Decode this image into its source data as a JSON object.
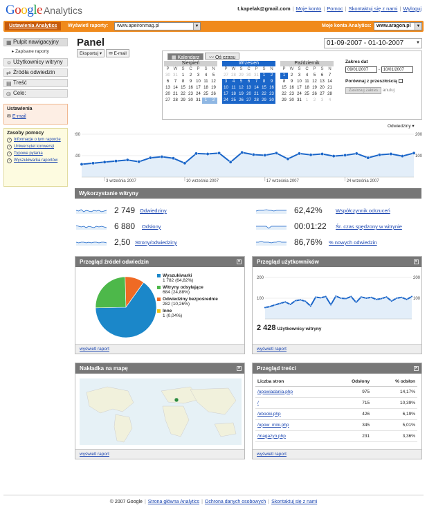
{
  "header": {
    "logo_google": "Google",
    "logo_analytics": "Analytics",
    "email": "t.kapelak@gmail.com",
    "links": [
      "Moje konto",
      "Pomoc",
      "Skontaktuj się z nami",
      "Wyloguj"
    ]
  },
  "toolbar": {
    "settings_tab": "Ustawienia Analytics",
    "view_reports_label": "Wyświetl raporty:",
    "view_reports_value": "www.apeironmag.pl",
    "accounts_label": "Moje konta Analytics:",
    "accounts_value": "www.aragon.pl"
  },
  "sidebar": {
    "items": [
      {
        "label": "Pulpit nawigacyjny",
        "icon": "dashboard-icon"
      },
      {
        "label": "Użytkownicy witryny",
        "icon": "user-icon"
      },
      {
        "label": "Źródła odwiedzin",
        "icon": "sources-icon"
      },
      {
        "label": "Treść",
        "icon": "content-icon"
      },
      {
        "label": "Cele:",
        "icon": "goal-icon"
      }
    ],
    "saved_reports": "Zapisane raporty",
    "settings_title": "Ustawienia",
    "settings_email": "E-mail",
    "help_title": "Zasoby pomocy",
    "help_items": [
      "Informacje o tym raporcie",
      "Uniwersytet konwersji",
      "Typowe pytania",
      "Wyszukiwarka raportów"
    ]
  },
  "main": {
    "title": "Panel",
    "export_label": "Eksportuj",
    "email_label": "E-mail",
    "date_range": "01-09-2007 - 01-10-2007"
  },
  "calendar": {
    "tab_calendar": "Kalendarz",
    "tab_timeline": "Oś czasu",
    "day_headers": [
      "P",
      "W",
      "Ś",
      "C",
      "P",
      "S",
      "N"
    ],
    "months": [
      {
        "name": "Sierpień",
        "days": [
          "30",
          "31",
          "1",
          "2",
          "3",
          "4",
          "5",
          "6",
          "7",
          "8",
          "9",
          "10",
          "11",
          "12",
          "13",
          "14",
          "15",
          "16",
          "17",
          "18",
          "19",
          "20",
          "21",
          "22",
          "23",
          "24",
          "25",
          "26",
          "27",
          "28",
          "29",
          "30",
          "31",
          "1",
          "2"
        ]
      },
      {
        "name": "Wrzesień",
        "days": [
          "27",
          "28",
          "29",
          "30",
          "31",
          "1",
          "2",
          "3",
          "4",
          "5",
          "6",
          "7",
          "8",
          "9",
          "10",
          "11",
          "12",
          "13",
          "14",
          "15",
          "16",
          "17",
          "18",
          "19",
          "20",
          "21",
          "22",
          "23",
          "24",
          "25",
          "26",
          "27",
          "28",
          "29",
          "30"
        ]
      },
      {
        "name": "Październik",
        "days": [
          "1",
          "2",
          "3",
          "4",
          "5",
          "6",
          "7",
          "8",
          "9",
          "10",
          "11",
          "12",
          "13",
          "14",
          "15",
          "16",
          "17",
          "18",
          "19",
          "20",
          "21",
          "22",
          "23",
          "24",
          "25",
          "26",
          "27",
          "28",
          "29",
          "30",
          "31",
          "1",
          "2",
          "3",
          "4"
        ]
      }
    ],
    "range_title": "Zakres dat",
    "date_from": "09/01/2007",
    "date_to": "10/01/2007",
    "compare_label": "Porównaj z przeszłością",
    "apply_label": "Zastosuj zakres",
    "cancel_label": "anuluj"
  },
  "visits_chart": {
    "metric_selector": "Odwiedziny",
    "chart_data": {
      "type": "line",
      "x_labels": [
        "3 września 2007",
        "10 września 2007",
        "17 września 2007",
        "24 września 2007"
      ],
      "y_ticks": [
        200,
        100
      ],
      "ylim": [
        0,
        200
      ],
      "values": [
        60,
        65,
        70,
        75,
        80,
        72,
        90,
        95,
        88,
        65,
        110,
        108,
        112,
        70,
        115,
        105,
        102,
        112,
        85,
        110,
        104,
        108,
        98,
        102,
        110,
        90,
        104,
        108,
        98,
        112
      ]
    }
  },
  "metrics": {
    "section_title": "Wykorzystanie witryny",
    "items": [
      {
        "value": "2 749",
        "label": "Odwiedziny"
      },
      {
        "value": "62,42%",
        "label": "Współczynnik odrzuceń"
      },
      {
        "value": "6 880",
        "label": "Odsłony"
      },
      {
        "value": "00:01:22",
        "label": "Śr. czas spędzony w witrynie"
      },
      {
        "value": "2,50",
        "label": "Strony/odwiedziny"
      },
      {
        "value": "86,76%",
        "label": "% nowych odwiedzin"
      }
    ]
  },
  "sources": {
    "title": "Przegląd źródeł odwiedzin",
    "footer": "wyświetl raport",
    "chart_data": {
      "type": "pie",
      "slices": [
        {
          "name": "Wyszukiwarki",
          "detail": "1 782 (64,82%)",
          "value": 64.82,
          "color": "#1b87c9"
        },
        {
          "name": "Witryny odsyłające",
          "detail": "684 (24,88%)",
          "value": 24.88,
          "color": "#4db84a"
        },
        {
          "name": "Odwiedziny bezpośrednie",
          "detail": "282 (10,26%)",
          "value": 10.26,
          "color": "#ef6a24"
        },
        {
          "name": "Inne",
          "detail": "1 (0,04%)",
          "value": 0.04,
          "color": "#f2c511"
        }
      ]
    }
  },
  "users": {
    "title": "Przegląd użytkowników",
    "footer": "wyświetl raport",
    "total": "2 428",
    "total_label": "Użytkownicy witryny",
    "chart_data": {
      "type": "line",
      "y_ticks": [
        200,
        100
      ],
      "ylim": [
        0,
        200
      ],
      "values": [
        55,
        60,
        68,
        75,
        82,
        70,
        88,
        92,
        85,
        62,
        105,
        102,
        108,
        68,
        110,
        100,
        98,
        108,
        80,
        106,
        100,
        104,
        94,
        98,
        106,
        86,
        100,
        104,
        94,
        108
      ]
    }
  },
  "map": {
    "title": "Nakładka na mapę",
    "footer": "wyświetl raport"
  },
  "content": {
    "title": "Przegląd treści",
    "footer": "wyświetl raport",
    "columns": [
      "Liczba stron",
      "Odsłony",
      "% odsłon"
    ],
    "rows": [
      [
        "/opowiadania.php",
        "975",
        "14,17%"
      ],
      [
        "/",
        "715",
        "10,39%"
      ],
      [
        "/ebooki.php",
        "426",
        "6,19%"
      ],
      [
        "/opow_mini.php",
        "345",
        "5,01%"
      ],
      [
        "/magazyn.php",
        "231",
        "3,36%"
      ]
    ]
  },
  "footer": {
    "copyright": "© 2007 Google",
    "links": [
      "Strona główna Analytics",
      "Ochrona danych osobowych",
      "Skontaktuj się z nami"
    ]
  }
}
